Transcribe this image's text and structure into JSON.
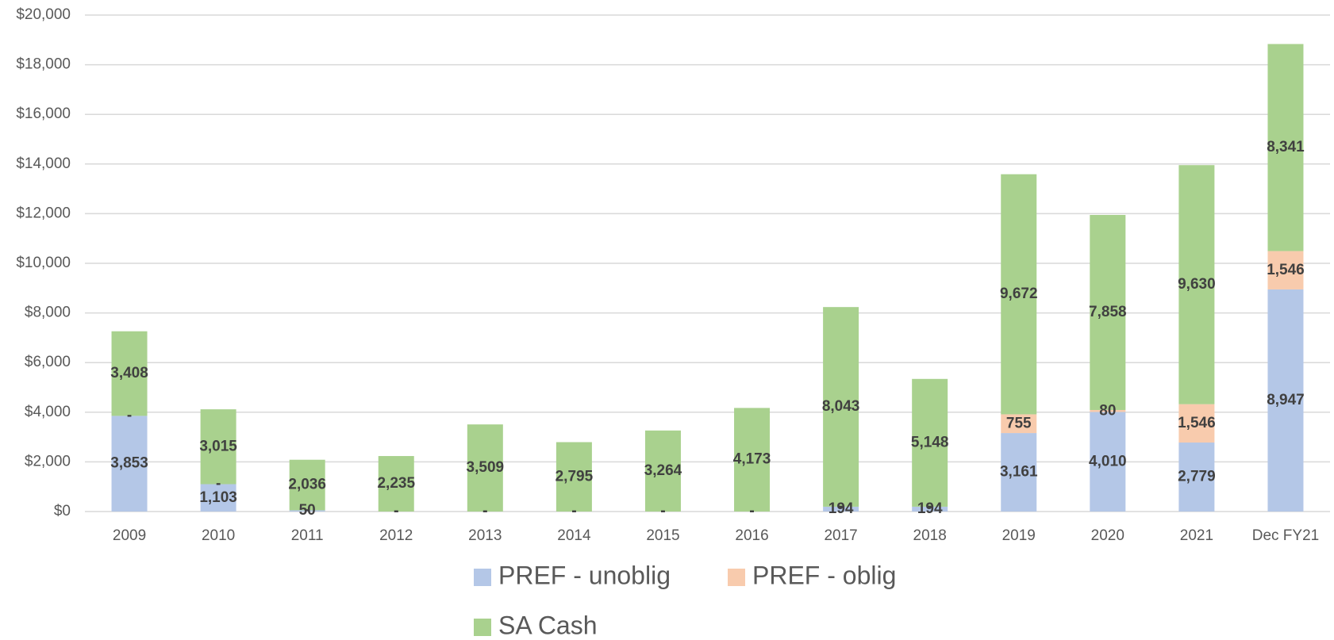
{
  "chart_data": {
    "type": "stacked_bar",
    "categories": [
      "2009",
      "2010",
      "2011",
      "2012",
      "2013",
      "2014",
      "2015",
      "2016",
      "2017",
      "2018",
      "2019",
      "2020",
      "2021",
      "Dec FY21"
    ],
    "series": [
      {
        "name": "PREF - unoblig",
        "color": "#b4c7e7",
        "values": [
          3853,
          1103,
          50,
          0,
          0,
          0,
          0,
          0,
          194,
          194,
          3161,
          4010,
          2779,
          8947
        ],
        "value_labels": [
          "3,853",
          "1,103",
          "50",
          "-",
          "-",
          "-",
          "-",
          "-",
          "194",
          "194",
          "3,161",
          "4,010",
          "2,779",
          "8,947"
        ]
      },
      {
        "name": "PREF - oblig",
        "color": "#f8cbad",
        "values": [
          0,
          0,
          0,
          0,
          0,
          0,
          0,
          0,
          0,
          0,
          755,
          80,
          1546,
          1546
        ],
        "value_labels": [
          "-",
          "-",
          "-",
          "-",
          "-",
          "-",
          "-",
          "-",
          "-",
          "-",
          "755",
          "80",
          "1,546",
          "1,546"
        ]
      },
      {
        "name": "SA Cash",
        "color": "#a9d18e",
        "values": [
          3408,
          3015,
          2036,
          2235,
          3509,
          2795,
          3264,
          4173,
          8043,
          5148,
          9672,
          7858,
          9630,
          8341
        ],
        "value_labels": [
          "3,408",
          "3,015",
          "2,036",
          "2,235",
          "3,509",
          "2,795",
          "3,264",
          "4,173",
          "8,043",
          "5,148",
          "9,672",
          "7,858",
          "9,630",
          "8,341"
        ]
      }
    ],
    "ylim": [
      0,
      20000
    ],
    "yticks": [
      {
        "value": 0,
        "label": "$0"
      },
      {
        "value": 2000,
        "label": "$2,000"
      },
      {
        "value": 4000,
        "label": "$4,000"
      },
      {
        "value": 6000,
        "label": "$6,000"
      },
      {
        "value": 8000,
        "label": "$8,000"
      },
      {
        "value": 10000,
        "label": "$10,000"
      },
      {
        "value": 12000,
        "label": "$12,000"
      },
      {
        "value": 14000,
        "label": "$14,000"
      },
      {
        "value": 16000,
        "label": "$16,000"
      },
      {
        "value": 18000,
        "label": "$18,000"
      },
      {
        "value": 20000,
        "label": "$20,000"
      }
    ],
    "grid": true,
    "legend": "bottom"
  }
}
